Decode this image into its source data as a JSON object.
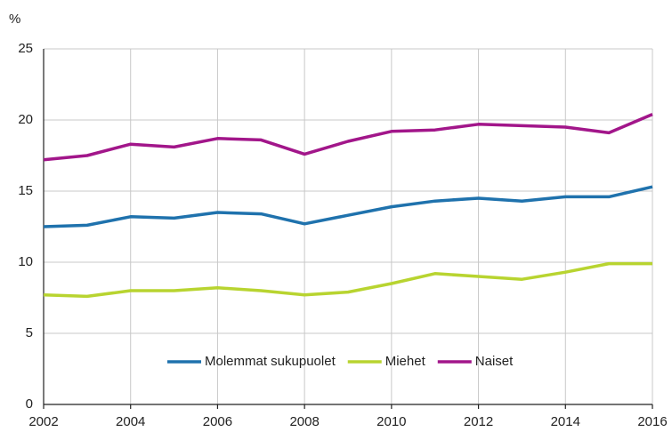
{
  "chart_data": {
    "type": "line",
    "y_label": "%",
    "x": [
      2002,
      2003,
      2004,
      2005,
      2006,
      2007,
      2008,
      2009,
      2010,
      2011,
      2012,
      2013,
      2014,
      2015,
      2016
    ],
    "series": [
      {
        "name": "Molemmat sukupuolet",
        "color": "#1f72ad",
        "values": [
          12.5,
          12.6,
          13.2,
          13.1,
          13.5,
          13.4,
          12.7,
          13.3,
          13.9,
          14.3,
          14.5,
          14.3,
          14.6,
          14.6,
          15.3
        ]
      },
      {
        "name": "Miehet",
        "color": "#b8d430",
        "values": [
          7.7,
          7.6,
          8.0,
          8.0,
          8.2,
          8.0,
          7.7,
          7.9,
          8.5,
          9.2,
          9.0,
          8.8,
          9.3,
          9.9,
          9.9
        ]
      },
      {
        "name": "Naiset",
        "color": "#a2168a",
        "values": [
          17.2,
          17.5,
          18.3,
          18.1,
          18.7,
          18.6,
          17.6,
          18.5,
          19.2,
          19.3,
          19.7,
          19.6,
          19.5,
          19.1,
          20.4
        ]
      }
    ],
    "xlim": [
      2002,
      2016
    ],
    "xticks": [
      2002,
      2004,
      2006,
      2008,
      2010,
      2012,
      2014,
      2016
    ],
    "ylim": [
      0,
      25
    ],
    "yticks": [
      0,
      5,
      10,
      15,
      20,
      25
    ],
    "grid": true,
    "legend": "bottom"
  }
}
